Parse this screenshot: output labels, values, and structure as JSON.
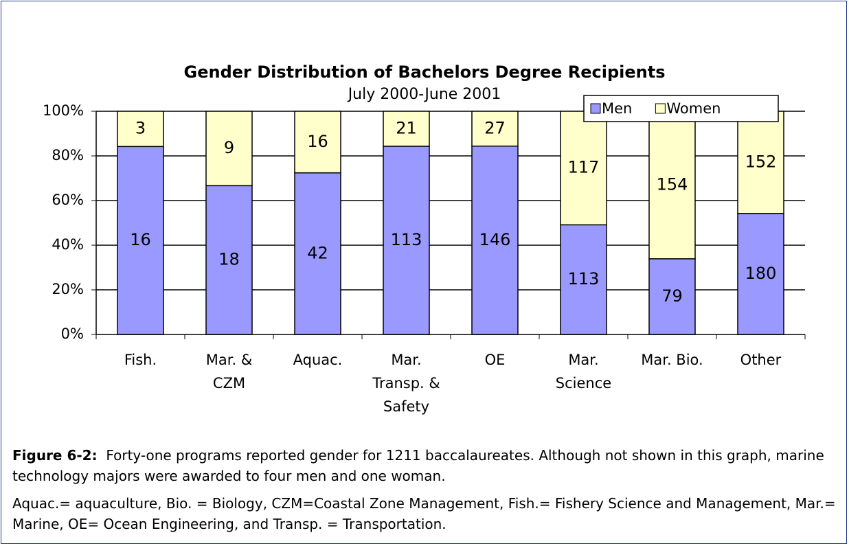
{
  "chart_data": {
    "type": "bar",
    "stack": "percent",
    "title": "Gender Distribution of Bachelors Degree Recipients",
    "subtitle": "July 2000-June 2001",
    "categories": [
      "Fish.",
      "Mar. &\nCZM",
      "Aquac.",
      "Mar.\nTransp. &\nSafety",
      "OE",
      "Mar.\nScience",
      "Mar. Bio.",
      "Other"
    ],
    "series": [
      {
        "name": "Men",
        "color": "#9999ff",
        "values": [
          16,
          18,
          42,
          113,
          146,
          113,
          79,
          180
        ]
      },
      {
        "name": "Women",
        "color": "#ffffcc",
        "values": [
          3,
          9,
          16,
          21,
          27,
          117,
          154,
          152
        ]
      }
    ],
    "ylim": [
      0,
      100
    ],
    "yticks": [
      {
        "value": 0,
        "label": "0%"
      },
      {
        "value": 20,
        "label": "20%"
      },
      {
        "value": 40,
        "label": "40%"
      },
      {
        "value": 60,
        "label": "60%"
      },
      {
        "value": 80,
        "label": "80%"
      },
      {
        "value": 100,
        "label": "100%"
      }
    ],
    "grid": true,
    "legend": "top-right"
  },
  "caption": {
    "label": "Figure 6-2:",
    "text": "Forty-one programs reported gender for 1211 baccalaureates.  Although not shown in this graph, marine technology majors were awarded to four men and one woman.",
    "note": "Aquac.= aquaculture, Bio. = Biology, CZM=Coastal Zone Management, Fish.= Fishery Science and Management, Mar.= Marine, OE= Ocean Engineering, and Transp. = Transportation."
  }
}
